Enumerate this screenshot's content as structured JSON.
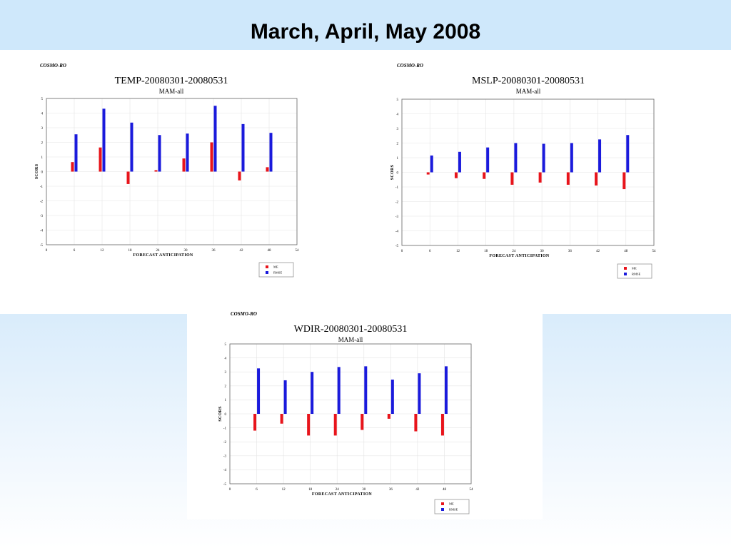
{
  "slide": {
    "title": "March, April, May  2008"
  },
  "colors": {
    "me": "#e8141b",
    "rmse": "#1a1adc",
    "band": "#cfe8fb"
  },
  "chart_data": [
    {
      "type": "bar",
      "model": "COSMO-RO",
      "title": "TEMP-20080301-20080531",
      "subtitle": "MAM-all",
      "xlabel": "FORECAST ANTICIPATION",
      "ylabel": "SCORS",
      "xlim": [
        0,
        54
      ],
      "xticks": [
        0,
        6,
        12,
        18,
        24,
        30,
        36,
        42,
        48,
        54
      ],
      "ylim": [
        -5,
        5
      ],
      "yticks": [
        -5,
        -4,
        -3,
        -2,
        -1,
        0,
        1,
        2,
        3,
        4,
        5
      ],
      "grid": true,
      "legend_position": "below-right",
      "x": [
        6,
        12,
        18,
        24,
        30,
        36,
        42,
        48
      ],
      "series": [
        {
          "name": "ME",
          "values": [
            0.65,
            1.65,
            -0.85,
            0.1,
            0.9,
            2.0,
            -0.6,
            0.3
          ]
        },
        {
          "name": "RMSE",
          "values": [
            2.55,
            4.3,
            3.35,
            2.5,
            2.6,
            4.5,
            3.25,
            2.65
          ]
        }
      ]
    },
    {
      "type": "bar",
      "model": "COSMO-RO",
      "title": "MSLP-20080301-20080531",
      "subtitle": "MAM-all",
      "xlabel": "FORECAST ANTICIPATION",
      "ylabel": "SCORS",
      "xlim": [
        0,
        54
      ],
      "xticks": [
        0,
        6,
        12,
        18,
        24,
        30,
        36,
        42,
        48,
        54
      ],
      "ylim": [
        -5,
        5
      ],
      "yticks": [
        -5,
        -4,
        -3,
        -2,
        -1,
        0,
        1,
        2,
        3,
        4,
        5
      ],
      "grid": true,
      "legend_position": "below-right",
      "x": [
        6,
        12,
        18,
        24,
        30,
        36,
        42,
        48
      ],
      "series": [
        {
          "name": "ME",
          "values": [
            -0.15,
            -0.4,
            -0.45,
            -0.85,
            -0.7,
            -0.85,
            -0.9,
            -1.15
          ]
        },
        {
          "name": "RMSE",
          "values": [
            1.15,
            1.4,
            1.7,
            2.0,
            1.95,
            2.0,
            2.25,
            2.55
          ]
        }
      ]
    },
    {
      "type": "bar",
      "model": "COSMO-RO",
      "title": "WDIR-20080301-20080531",
      "subtitle": "MAM-all",
      "xlabel": "FORECAST ANTICIPATION",
      "ylabel": "SCORS",
      "xlim": [
        0,
        54
      ],
      "xticks": [
        0,
        6,
        12,
        18,
        24,
        30,
        36,
        42,
        48,
        54
      ],
      "ylim": [
        -5,
        5
      ],
      "yticks": [
        -5,
        -4,
        -3,
        -2,
        -1,
        0,
        1,
        2,
        3,
        4,
        5
      ],
      "grid": true,
      "legend_position": "below-right",
      "x": [
        6,
        12,
        18,
        24,
        30,
        36,
        42,
        48
      ],
      "series": [
        {
          "name": "ME",
          "values": [
            -1.2,
            -0.7,
            -1.55,
            -1.55,
            -1.15,
            -0.35,
            -1.25,
            -1.55
          ]
        },
        {
          "name": "RMSE",
          "values": [
            3.25,
            2.4,
            3.0,
            3.35,
            3.4,
            2.45,
            2.9,
            3.4
          ]
        }
      ]
    }
  ]
}
